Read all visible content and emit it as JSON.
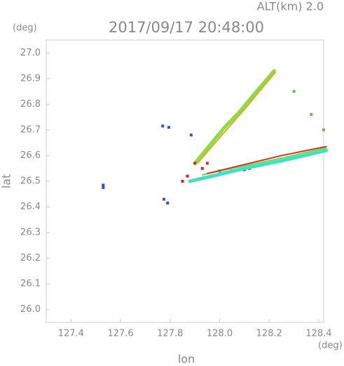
{
  "chart_data": {
    "type": "scatter",
    "subtitle": "ALT(km)  2.0",
    "title": "2017/09/17 20:48:00",
    "y_unit": "(deg)",
    "x_unit": "(deg)",
    "y_label": "lat",
    "x_label": "lon",
    "xlim": [
      127.3,
      128.42
    ],
    "ylim": [
      25.95,
      27.05
    ],
    "xticks": [
      127.4,
      127.6,
      127.8,
      {
        "value": 128.0,
        "label": "128.0"
      },
      128.2,
      128.4
    ],
    "yticks": [
      {
        "value": 26.0,
        "label": "26.0"
      },
      26.1,
      26.2,
      26.3,
      26.4,
      26.5,
      26.6,
      26.7,
      26.8,
      26.9,
      {
        "value": 27.0,
        "label": "27.0"
      }
    ],
    "series": [
      {
        "color": "#3050e0",
        "style": "dots",
        "x": [
          127.53,
          127.53,
          127.77,
          127.795,
          127.885,
          127.775,
          127.79,
          128.0,
          128.05,
          128.1,
          128.12
        ],
        "y": [
          26.485,
          26.475,
          26.715,
          26.71,
          26.68,
          26.43,
          26.415,
          26.54,
          26.54,
          26.545,
          26.55
        ]
      },
      {
        "color": "#88e040",
        "style": "streak",
        "x": [
          127.9,
          127.96,
          128.02,
          128.08,
          128.14,
          128.22
        ],
        "y": [
          26.57,
          26.64,
          26.71,
          26.77,
          26.84,
          26.93
        ]
      },
      {
        "color": "#f0a020",
        "style": "thin",
        "x": [
          127.91,
          128.0,
          128.1,
          128.225
        ],
        "y": [
          26.57,
          26.67,
          26.78,
          26.925
        ]
      },
      {
        "color": "#40e0c0",
        "style": "streak",
        "x": [
          127.88,
          127.97,
          128.1,
          128.25,
          128.43
        ],
        "y": [
          26.5,
          26.52,
          26.55,
          26.58,
          26.62
        ]
      },
      {
        "color": "#60e060",
        "style": "thin",
        "x": [
          127.93,
          128.1,
          128.25,
          128.43
        ],
        "y": [
          26.525,
          26.56,
          26.59,
          26.63
        ]
      },
      {
        "color": "#e03020",
        "style": "thin",
        "x": [
          127.95,
          128.1,
          128.25,
          128.43
        ],
        "y": [
          26.53,
          26.565,
          26.6,
          26.635
        ]
      },
      {
        "color": "#e02020",
        "style": "dots",
        "x": [
          127.85,
          127.9,
          127.93,
          127.95,
          127.87
        ],
        "y": [
          26.5,
          26.57,
          26.55,
          26.57,
          26.52
        ]
      },
      {
        "color": "#60c060",
        "style": "dots",
        "x": [
          128.3,
          128.37,
          128.42
        ],
        "y": [
          26.85,
          26.76,
          26.7
        ]
      }
    ]
  }
}
